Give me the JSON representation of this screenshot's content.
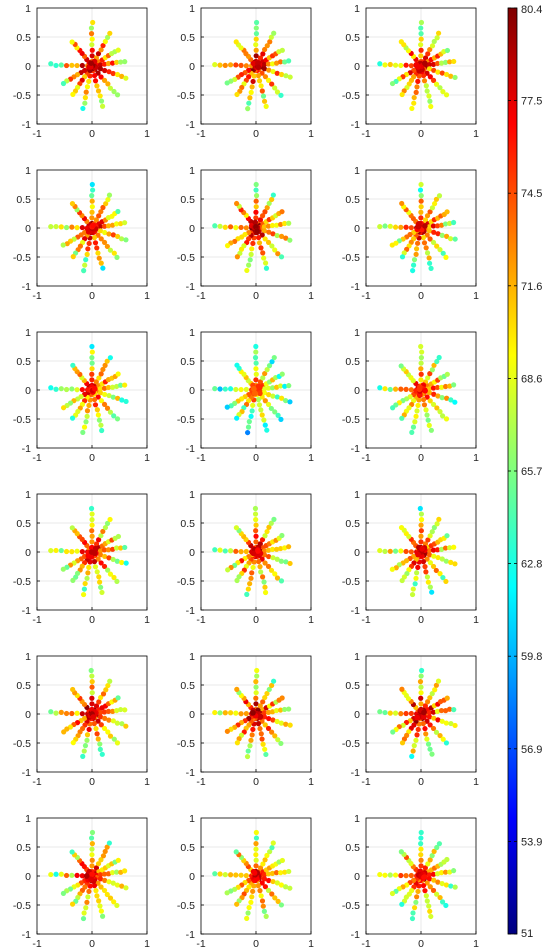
{
  "chart_data": [
    {
      "type": "scatter",
      "panel": 1,
      "xlim": [
        -1,
        1
      ],
      "ylim": [
        -1,
        1
      ],
      "x_ticks": [
        "-1",
        "0",
        "1"
      ],
      "y_ticks": [
        "0.5",
        "0",
        "-0.5",
        "-1"
      ],
      "y_top_label": "1",
      "grid": true,
      "spokes": 12,
      "points_per_spoke": 8,
      "center_value": 78
    },
    {
      "type": "scatter",
      "panel": 2,
      "xlim": [
        -1,
        1
      ],
      "ylim": [
        -1,
        1
      ],
      "x_ticks": [
        "-1",
        "0",
        "1"
      ],
      "y_ticks": [
        "0.5",
        "0",
        "-0.5",
        "-1"
      ],
      "y_top_label": "1",
      "grid": true,
      "spokes": 12,
      "points_per_spoke": 8,
      "center_value": 78
    },
    {
      "type": "scatter",
      "panel": 3,
      "xlim": [
        -1,
        1
      ],
      "ylim": [
        -1,
        1
      ],
      "x_ticks": [
        "-1",
        "0",
        "1"
      ],
      "y_ticks": [
        "0.5",
        "0",
        "-0.5",
        "-1"
      ],
      "y_top_label": "1",
      "grid": true,
      "spokes": 12,
      "points_per_spoke": 8,
      "center_value": 77
    },
    {
      "type": "scatter",
      "panel": 4,
      "xlim": [
        -1,
        1
      ],
      "ylim": [
        -1,
        1
      ],
      "x_ticks": [
        "-1",
        "0",
        "1"
      ],
      "y_ticks": [
        "0.5",
        "0",
        "-0.5",
        "-1"
      ],
      "y_top_label": "1",
      "grid": true,
      "spokes": 12,
      "points_per_spoke": 8,
      "center_value": 77
    },
    {
      "type": "scatter",
      "panel": 5,
      "xlim": [
        -1,
        1
      ],
      "ylim": [
        -1,
        1
      ],
      "x_ticks": [
        "-1",
        "0",
        "1"
      ],
      "y_ticks": [
        "0.5",
        "0",
        "-0.5",
        "-1"
      ],
      "y_top_label": "1",
      "grid": true,
      "spokes": 12,
      "points_per_spoke": 8,
      "center_value": 78
    },
    {
      "type": "scatter",
      "panel": 6,
      "xlim": [
        -1,
        1
      ],
      "ylim": [
        -1,
        1
      ],
      "x_ticks": [
        "-1",
        "0",
        "1"
      ],
      "y_ticks": [
        "0.5",
        "0",
        "-0.5",
        "-1"
      ],
      "y_top_label": "1",
      "grid": true,
      "spokes": 12,
      "points_per_spoke": 8,
      "center_value": 77
    },
    {
      "type": "scatter",
      "panel": 7,
      "xlim": [
        -1,
        1
      ],
      "ylim": [
        -1,
        1
      ],
      "x_ticks": [
        "-1",
        "0",
        "1"
      ],
      "y_ticks": [
        "0.5",
        "0",
        "-0.5",
        "-1"
      ],
      "y_top_label": "1",
      "grid": true,
      "spokes": 12,
      "points_per_spoke": 8,
      "center_value": 76
    },
    {
      "type": "scatter",
      "panel": 8,
      "xlim": [
        -1,
        1
      ],
      "ylim": [
        -1,
        1
      ],
      "x_ticks": [
        "-1",
        "0",
        "1"
      ],
      "y_ticks": [
        "0.5",
        "0",
        "-0.5",
        "-1"
      ],
      "y_top_label": "1",
      "grid": true,
      "spokes": 12,
      "points_per_spoke": 8,
      "center_value": 74
    },
    {
      "type": "scatter",
      "panel": 9,
      "xlim": [
        -1,
        1
      ],
      "ylim": [
        -1,
        1
      ],
      "x_ticks": [
        "-1",
        "0",
        "1"
      ],
      "y_ticks": [
        "0.5",
        "0",
        "-0.5",
        "-1"
      ],
      "y_top_label": "1",
      "grid": true,
      "spokes": 12,
      "points_per_spoke": 8,
      "center_value": 76
    },
    {
      "type": "scatter",
      "panel": 10,
      "xlim": [
        -1,
        1
      ],
      "ylim": [
        -1,
        1
      ],
      "x_ticks": [
        "-1",
        "0",
        "1"
      ],
      "y_ticks": [
        "0.5",
        "0",
        "-0.5",
        "-1"
      ],
      "y_top_label": "1",
      "grid": true,
      "spokes": 12,
      "points_per_spoke": 8,
      "center_value": 77
    },
    {
      "type": "scatter",
      "panel": 11,
      "xlim": [
        -1,
        1
      ],
      "ylim": [
        -1,
        1
      ],
      "x_ticks": [
        "-1",
        "0",
        "1"
      ],
      "y_ticks": [
        "0.5",
        "0",
        "-0.5",
        "-1"
      ],
      "y_top_label": "1",
      "grid": true,
      "spokes": 12,
      "points_per_spoke": 8,
      "center_value": 77
    },
    {
      "type": "scatter",
      "panel": 12,
      "xlim": [
        -1,
        1
      ],
      "ylim": [
        -1,
        1
      ],
      "x_ticks": [
        "-1",
        "0",
        "1"
      ],
      "y_ticks": [
        "0.5",
        "0",
        "-0.5",
        "-1"
      ],
      "y_top_label": "1",
      "grid": true,
      "spokes": 12,
      "points_per_spoke": 8,
      "center_value": 77
    },
    {
      "type": "scatter",
      "panel": 13,
      "xlim": [
        -1,
        1
      ],
      "ylim": [
        -1,
        1
      ],
      "x_ticks": [
        "-1",
        "0",
        "1"
      ],
      "y_ticks": [
        "0.5",
        "0",
        "-0.5",
        "-1"
      ],
      "y_top_label": "1",
      "grid": true,
      "spokes": 12,
      "points_per_spoke": 8,
      "center_value": 78
    },
    {
      "type": "scatter",
      "panel": 14,
      "xlim": [
        -1,
        1
      ],
      "ylim": [
        -1,
        1
      ],
      "x_ticks": [
        "-1",
        "0",
        "1"
      ],
      "y_ticks": [
        "0.5",
        "0",
        "-0.5",
        "-1"
      ],
      "y_top_label": "1",
      "grid": true,
      "spokes": 12,
      "points_per_spoke": 8,
      "center_value": 78
    },
    {
      "type": "scatter",
      "panel": 15,
      "xlim": [
        -1,
        1
      ],
      "ylim": [
        -1,
        1
      ],
      "x_ticks": [
        "-1",
        "0",
        "1"
      ],
      "y_ticks": [
        "0.5",
        "0",
        "-0.5",
        "-1"
      ],
      "y_top_label": "1",
      "grid": true,
      "spokes": 12,
      "points_per_spoke": 8,
      "center_value": 78
    },
    {
      "type": "scatter",
      "panel": 16,
      "xlim": [
        -1,
        1
      ],
      "ylim": [
        -1,
        1
      ],
      "x_ticks": [
        "-1",
        "0",
        "1"
      ],
      "y_ticks": [
        "0.5",
        "0",
        "-0.5",
        "-1"
      ],
      "y_top_label": "1",
      "grid": true,
      "spokes": 12,
      "points_per_spoke": 8,
      "center_value": 77
    },
    {
      "type": "scatter",
      "panel": 17,
      "xlim": [
        -1,
        1
      ],
      "ylim": [
        -1,
        1
      ],
      "x_ticks": [
        "-1",
        "0",
        "1"
      ],
      "y_ticks": [
        "0.5",
        "0",
        "-0.5",
        "-1"
      ],
      "y_top_label": "1",
      "grid": true,
      "spokes": 12,
      "points_per_spoke": 8,
      "center_value": 77
    },
    {
      "type": "scatter",
      "panel": 18,
      "xlim": [
        -1,
        1
      ],
      "ylim": [
        -1,
        1
      ],
      "x_ticks": [
        "-1",
        "0",
        "1"
      ],
      "y_ticks": [
        "0.5",
        "0",
        "-0.5",
        "-1"
      ],
      "y_top_label": "1",
      "grid": true,
      "spokes": 12,
      "points_per_spoke": 8,
      "center_value": 77
    }
  ],
  "colorbar": {
    "min": 51,
    "max": 80.4,
    "tick_labels": [
      "80.4",
      "77.5",
      "74.5",
      "71.6",
      "68.6",
      "65.7",
      "62.8",
      "59.8",
      "56.9",
      "53.9",
      "51"
    ],
    "colormap": "jet",
    "colormap_stops": [
      "#00007f",
      "#0000ff",
      "#007fff",
      "#00ffff",
      "#7fff7f",
      "#ffff00",
      "#ff7f00",
      "#ff0000",
      "#7f0000"
    ]
  }
}
